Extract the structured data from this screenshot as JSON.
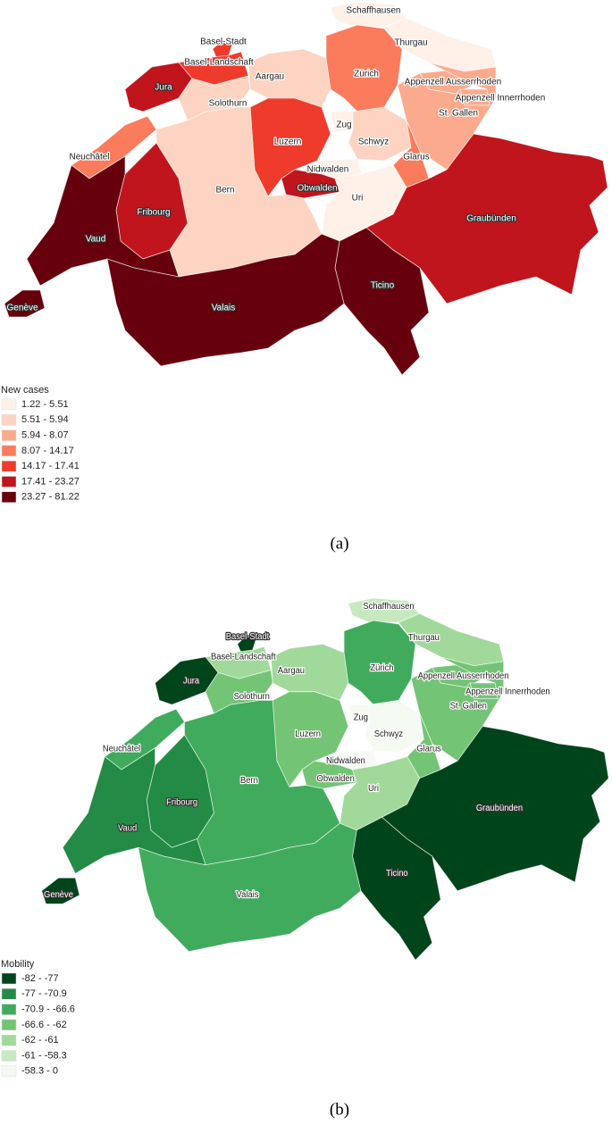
{
  "maps": [
    {
      "legend_title": "New cases",
      "caption": "(a)",
      "legend": [
        {
          "label": "1.22 - 5.51",
          "color": "#fff0e8"
        },
        {
          "label": "5.51 - 5.94",
          "color": "#fdd3c1"
        },
        {
          "label": "5.94 - 8.07",
          "color": "#fcaa8e"
        },
        {
          "label": "8.07 - 14.17",
          "color": "#fb7b5d"
        },
        {
          "label": "14.17 - 17.41",
          "color": "#ef3b2c"
        },
        {
          "label": "17.41 - 23.27",
          "color": "#c0151c"
        },
        {
          "label": "23.27 - 81.22",
          "color": "#67000d"
        }
      ],
      "regions": [
        {
          "name": "Schaffhausen",
          "color": "#fff0e8"
        },
        {
          "name": "Thurgau",
          "color": "#fff0e8"
        },
        {
          "name": "Basel-Stadt",
          "color": "#ef3b2c"
        },
        {
          "name": "Basel-Landschaft",
          "color": "#ef3b2c"
        },
        {
          "name": "Aargau",
          "color": "#fdd3c1"
        },
        {
          "name": "Zürich",
          "color": "#fb7b5d"
        },
        {
          "name": "Appenzell Ausserrhoden",
          "color": "#fcaa8e"
        },
        {
          "name": "Appenzell Innerrhoden",
          "color": "#fcaa8e"
        },
        {
          "name": "Jura",
          "color": "#c0151c"
        },
        {
          "name": "Solothurn",
          "color": "#fdd3c1"
        },
        {
          "name": "St. Gallen",
          "color": "#fcaa8e"
        },
        {
          "name": "Zug",
          "color": "#fff0e8"
        },
        {
          "name": "Luzern",
          "color": "#ef3b2c"
        },
        {
          "name": "Schwyz",
          "color": "#fdd3c1"
        },
        {
          "name": "Neuchâtel",
          "color": "#fb7b5d"
        },
        {
          "name": "Glarus",
          "color": "#fb7b5d"
        },
        {
          "name": "Nidwalden",
          "color": "#fff0e8"
        },
        {
          "name": "Obwalden",
          "color": "#c0151c"
        },
        {
          "name": "Bern",
          "color": "#fdd3c1"
        },
        {
          "name": "Uri",
          "color": "#fff0e8"
        },
        {
          "name": "Fribourg",
          "color": "#c0151c"
        },
        {
          "name": "Graubünden",
          "color": "#c0151c"
        },
        {
          "name": "Vaud",
          "color": "#67000d"
        },
        {
          "name": "Ticino",
          "color": "#67000d"
        },
        {
          "name": "Genève",
          "color": "#67000d"
        },
        {
          "name": "Valais",
          "color": "#67000d"
        }
      ]
    },
    {
      "legend_title": "Mobility",
      "caption": "(b)",
      "legend": [
        {
          "label": "-82 - -77",
          "color": "#00441b"
        },
        {
          "label": "-77 - -70.9",
          "color": "#238b45"
        },
        {
          "label": "-70.9 - -66.6",
          "color": "#41ab5d"
        },
        {
          "label": "-66.6 - -62",
          "color": "#74c476"
        },
        {
          "label": "-62 - -61",
          "color": "#a1d99b"
        },
        {
          "label": "-61 - -58.3",
          "color": "#c7e9c0"
        },
        {
          "label": "-58.3 - 0",
          "color": "#f5fbf2"
        }
      ],
      "regions": [
        {
          "name": "Schaffhausen",
          "color": "#c7e9c0"
        },
        {
          "name": "Thurgau",
          "color": "#a1d99b"
        },
        {
          "name": "Basel-Stadt",
          "color": "#00441b"
        },
        {
          "name": "Basel-Landschaft",
          "color": "#a1d99b"
        },
        {
          "name": "Aargau",
          "color": "#a1d99b"
        },
        {
          "name": "Zürich",
          "color": "#41ab5d"
        },
        {
          "name": "Appenzell Ausserrhoden",
          "color": "#74c476"
        },
        {
          "name": "Appenzell Innerrhoden",
          "color": "#74c476"
        },
        {
          "name": "Jura",
          "color": "#00441b"
        },
        {
          "name": "Solothurn",
          "color": "#74c476"
        },
        {
          "name": "St. Gallen",
          "color": "#74c476"
        },
        {
          "name": "Zug",
          "color": "#f5fbf2"
        },
        {
          "name": "Luzern",
          "color": "#74c476"
        },
        {
          "name": "Schwyz",
          "color": "#f5fbf2"
        },
        {
          "name": "Neuchâtel",
          "color": "#41ab5d"
        },
        {
          "name": "Glarus",
          "color": "#74c476"
        },
        {
          "name": "Nidwalden",
          "color": "#f5fbf2"
        },
        {
          "name": "Obwalden",
          "color": "#74c476"
        },
        {
          "name": "Bern",
          "color": "#41ab5d"
        },
        {
          "name": "Uri",
          "color": "#a1d99b"
        },
        {
          "name": "Fribourg",
          "color": "#238b45"
        },
        {
          "name": "Graubünden",
          "color": "#00441b"
        },
        {
          "name": "Vaud",
          "color": "#238b45"
        },
        {
          "name": "Ticino",
          "color": "#00441b"
        },
        {
          "name": "Genève",
          "color": "#00441b"
        },
        {
          "name": "Valais",
          "color": "#41ab5d"
        }
      ]
    }
  ]
}
